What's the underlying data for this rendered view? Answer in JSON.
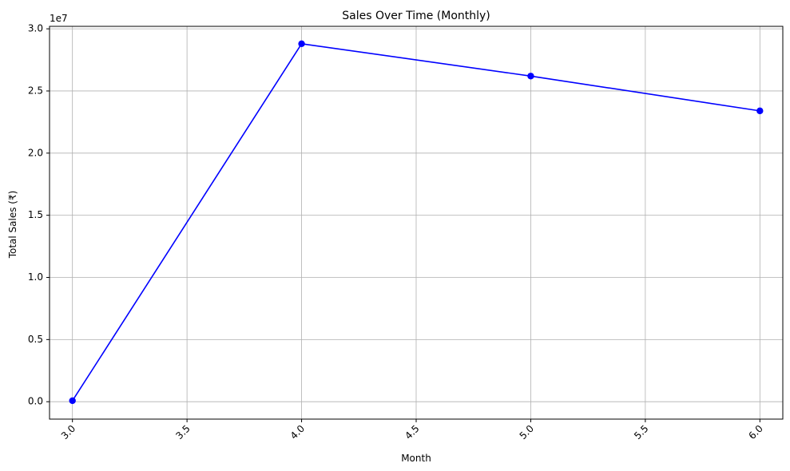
{
  "chart_data": {
    "type": "line",
    "title": "Sales Over Time (Monthly)",
    "xlabel": "Month",
    "ylabel": "Total Sales (₹)",
    "y_offset_label": "1e7",
    "xlim": [
      2.9,
      6.1
    ],
    "ylim": [
      -1400000,
      30200000
    ],
    "x_ticks": [
      3.0,
      3.5,
      4.0,
      4.5,
      5.0,
      5.5,
      6.0
    ],
    "x_tick_labels": [
      "3.0",
      "3.5",
      "4.0",
      "4.5",
      "5.0",
      "5.5",
      "6.0"
    ],
    "y_ticks": [
      0,
      5000000,
      10000000,
      15000000,
      20000000,
      25000000,
      30000000
    ],
    "y_tick_labels": [
      "0.0",
      "0.5",
      "1.0",
      "1.5",
      "2.0",
      "2.5",
      "3.0"
    ],
    "grid": true,
    "x_tick_rotation_deg": 45,
    "series": [
      {
        "x": [
          3.0,
          4.0,
          5.0,
          6.0
        ],
        "y": [
          80000,
          28800000,
          26200000,
          23400000
        ],
        "color": "#0000ff",
        "marker": "circle"
      }
    ]
  }
}
